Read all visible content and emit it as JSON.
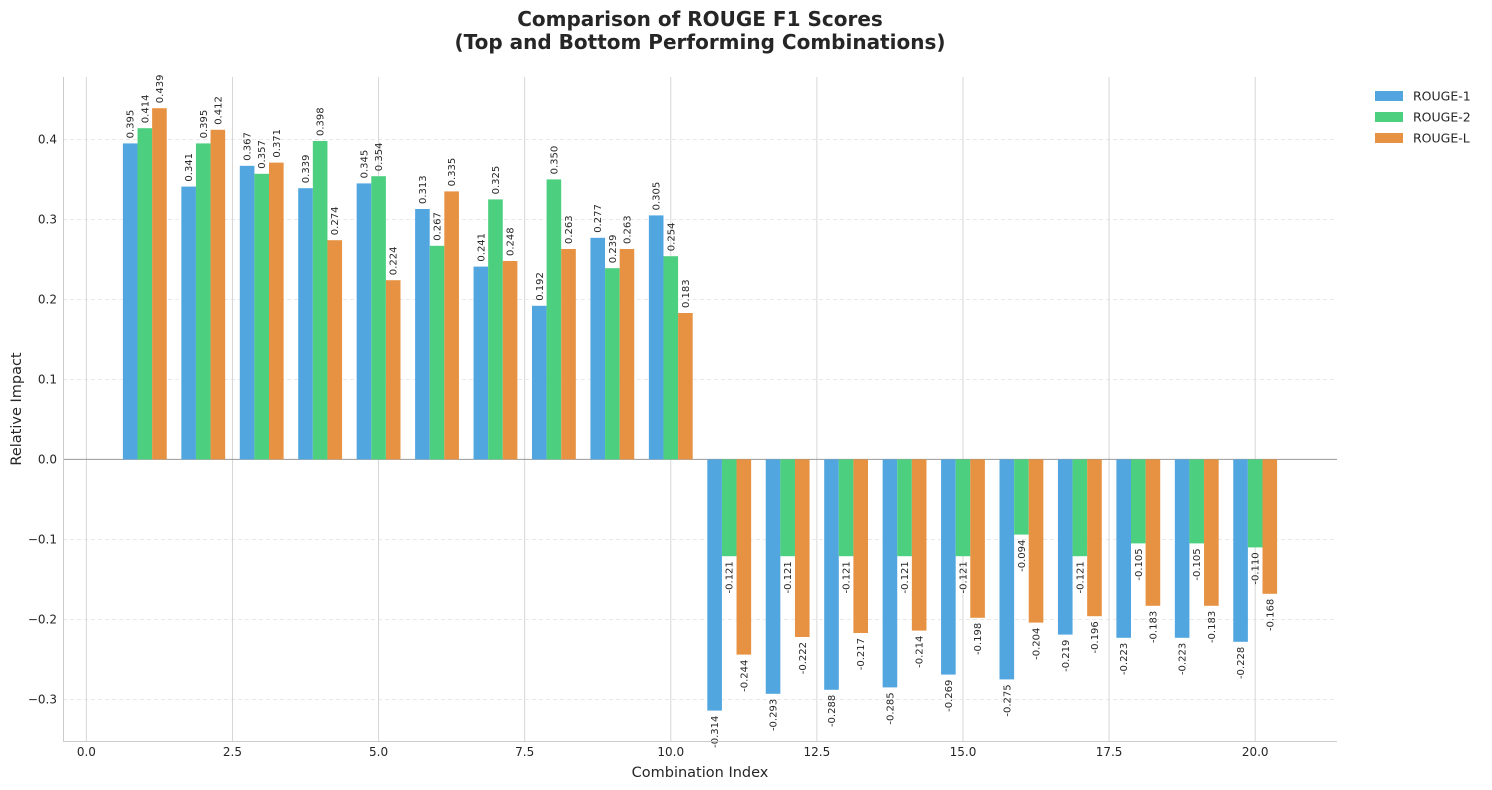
{
  "chart_data": {
    "type": "bar",
    "title_line1": "Comparison of ROUGE F1 Scores",
    "title_line2": "(Top and Bottom Performing Combinations)",
    "xlabel": "Combination Index",
    "ylabel": "Relative Impact",
    "x": [
      1,
      2,
      3,
      4,
      5,
      6,
      7,
      8,
      9,
      10,
      11,
      12,
      13,
      14,
      15,
      16,
      17,
      18,
      19,
      20
    ],
    "xlim": [
      -0.4,
      21.4
    ],
    "ylim": [
      -0.352,
      0.478
    ],
    "xticks": [
      0.0,
      2.5,
      5.0,
      7.5,
      10.0,
      12.5,
      15.0,
      17.5,
      20.0
    ],
    "xtick_labels": [
      "0.0",
      "2.5",
      "5.0",
      "7.5",
      "10.0",
      "12.5",
      "15.0",
      "17.5",
      "20.0"
    ],
    "yticks": [
      -0.3,
      -0.2,
      -0.1,
      0.0,
      0.1,
      0.2,
      0.3,
      0.4
    ],
    "ytick_labels": [
      "−0.3",
      "−0.2",
      "−0.1",
      "0.0",
      "0.1",
      "0.2",
      "0.3",
      "0.4"
    ],
    "legend_position": "outside top-right",
    "grid": "dashed horizontal major, solid vertical major",
    "series": [
      {
        "name": "ROUGE-1",
        "color": "#52a6e0",
        "values": [
          0.395,
          0.341,
          0.367,
          0.339,
          0.345,
          0.313,
          0.241,
          0.192,
          0.277,
          0.305,
          -0.314,
          -0.293,
          -0.288,
          -0.285,
          -0.269,
          -0.275,
          -0.219,
          -0.223,
          -0.223,
          -0.228
        ],
        "labels": [
          "0.395",
          "0.341",
          "0.367",
          "0.339",
          "0.345",
          "0.313",
          "0.241",
          "0.192",
          "0.277",
          "0.305",
          "-0.314",
          "-0.293",
          "-0.288",
          "-0.285",
          "-0.269",
          "-0.275",
          "-0.219",
          "-0.223",
          "-0.223",
          "-0.228"
        ]
      },
      {
        "name": "ROUGE-2",
        "color": "#4cd080",
        "values": [
          0.414,
          0.395,
          0.357,
          0.398,
          0.354,
          0.267,
          0.325,
          0.35,
          0.239,
          0.254,
          -0.121,
          -0.121,
          -0.121,
          -0.121,
          -0.121,
          -0.094,
          -0.121,
          -0.105,
          -0.105,
          -0.11
        ],
        "labels": [
          "0.414",
          "0.395",
          "0.357",
          "0.398",
          "0.354",
          "0.267",
          "0.325",
          "0.350",
          "0.239",
          "0.254",
          "-0.121",
          "-0.121",
          "-0.121",
          "-0.121",
          "-0.121",
          "-0.094",
          "-0.121",
          "-0.105",
          "-0.105",
          "-0.110"
        ]
      },
      {
        "name": "ROUGE-L",
        "color": "#e69242",
        "values": [
          0.439,
          0.412,
          0.371,
          0.274,
          0.224,
          0.335,
          0.248,
          0.263,
          0.263,
          0.183,
          -0.244,
          -0.222,
          -0.217,
          -0.214,
          -0.198,
          -0.204,
          -0.196,
          -0.183,
          -0.183,
          -0.168
        ],
        "labels": [
          "0.439",
          "0.412",
          "0.371",
          "0.274",
          "0.224",
          "0.335",
          "0.248",
          "0.263",
          "0.263",
          "0.183",
          "-0.244",
          "-0.222",
          "-0.217",
          "-0.214",
          "-0.198",
          "-0.204",
          "-0.196",
          "-0.183",
          "-0.183",
          "-0.168"
        ]
      }
    ]
  }
}
